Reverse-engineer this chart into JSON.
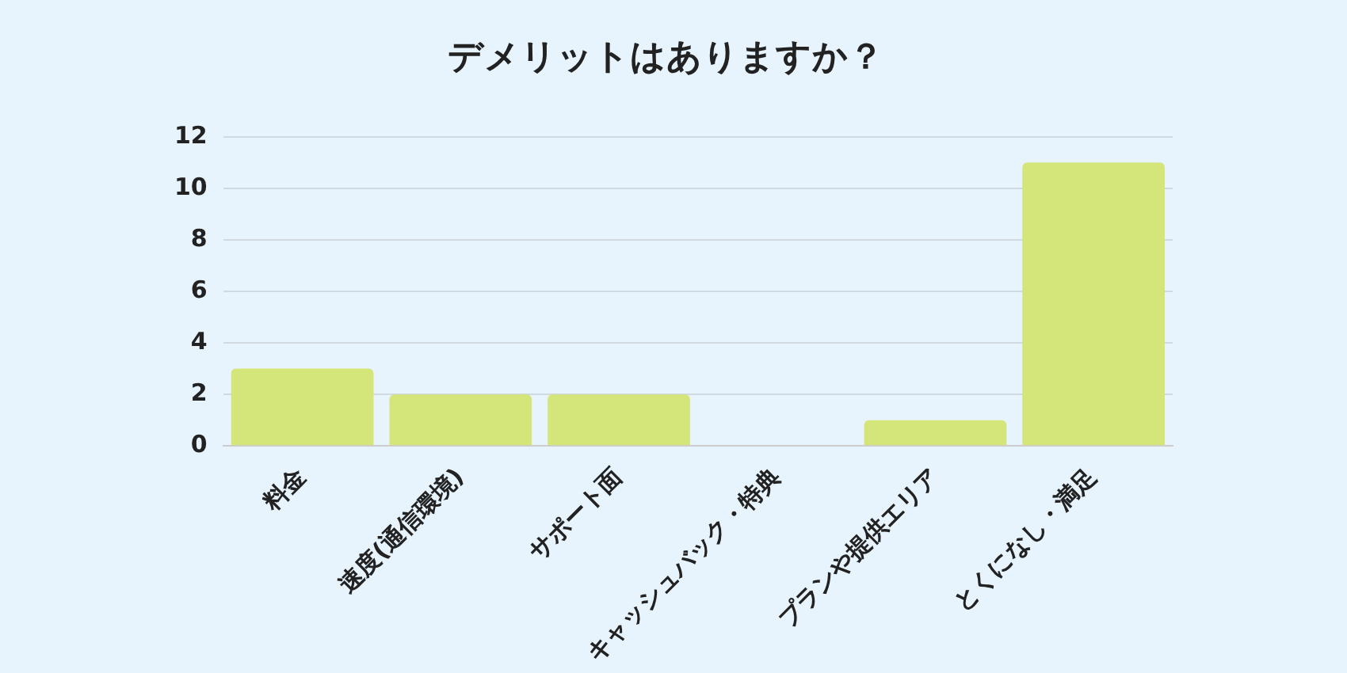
{
  "chart_data": {
    "type": "bar",
    "title": "デメリットはありますか？",
    "categories": [
      "料金",
      "速度(通信環境)",
      "サポート面",
      "キャッシュバック・特典",
      "プランや提供エリア",
      "とくになし・満足"
    ],
    "values": [
      3,
      2,
      2,
      0,
      1,
      11
    ],
    "color": "#d4e57a",
    "ylim": [
      0,
      12
    ],
    "yticks": [
      0,
      2,
      4,
      6,
      8,
      10,
      12
    ],
    "grid": "y",
    "legend": false
  }
}
